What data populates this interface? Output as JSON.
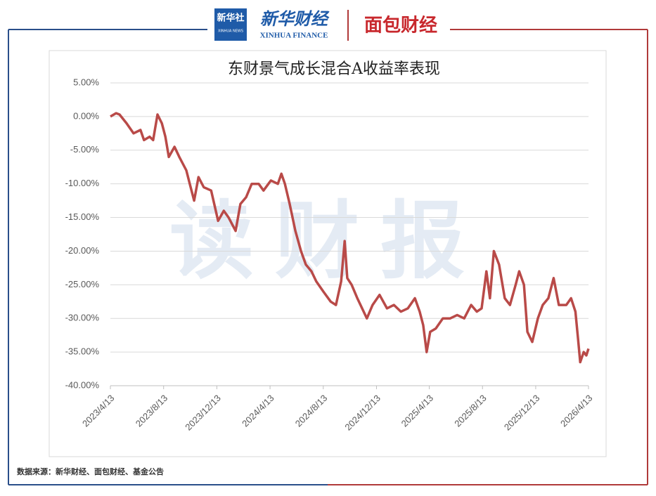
{
  "header": {
    "logo_xinhua": "新华社",
    "logo_xinhua_en": "XINHUA NEWS",
    "brand": "新华财经",
    "brand_en": "XINHUA FINANCE",
    "partner": "面包财经"
  },
  "watermark": "读财报",
  "footer": "数据来源：新华财经、面包财经、基金公告",
  "chart_data": {
    "type": "line",
    "title": "东财景气成长混合A收益率表现",
    "x": [
      "2023/4/13",
      "2023/4/26",
      "2023/5/4",
      "2023/5/20",
      "2023/6/5",
      "2023/6/21",
      "2023/6/29",
      "2023/7/12",
      "2023/7/20",
      "2023/7/30",
      "2023/8/9",
      "2023/8/17",
      "2023/8/25",
      "2023/9/7",
      "2023/9/18",
      "2023/10/4",
      "2023/10/12",
      "2023/10/22",
      "2023/11/1",
      "2023/11/13",
      "2023/11/30",
      "2023/12/16",
      "2023/12/29",
      "2024/1/9",
      "2024/1/25",
      "2024/2/5",
      "2024/2/18",
      "2024/3/2",
      "2024/3/18",
      "2024/3/29",
      "2024/4/15",
      "2024/5/1",
      "2024/5/9",
      "2024/5/17",
      "2024/5/28",
      "2024/6/10",
      "2024/6/23",
      "2024/7/4",
      "2024/7/17",
      "2024/7/28",
      "2024/8/13",
      "2024/8/30",
      "2024/9/11",
      "2024/9/23",
      "2024/10/1",
      "2024/10/7",
      "2024/10/17",
      "2024/10/30",
      "2024/11/10",
      "2024/11/21",
      "2024/12/4",
      "2024/12/20",
      "2025/1/6",
      "2025/1/22",
      "2025/2/7",
      "2025/2/23",
      "2025/3/11",
      "2025/3/22",
      "2025/3/30",
      "2025/4/7",
      "2025/4/15",
      "2025/4/28",
      "2025/5/14",
      "2025/5/31",
      "2025/6/16",
      "2025/7/2",
      "2025/7/18",
      "2025/7/31",
      "2025/8/11",
      "2025/8/22",
      "2025/8/30",
      "2025/9/8",
      "2025/9/20",
      "2025/10/3",
      "2025/10/15",
      "2025/10/28",
      "2025/11/5",
      "2025/11/16",
      "2025/11/24",
      "2025/12/5",
      "2025/12/18",
      "2025/12/29",
      "2026/1/11",
      "2026/1/23",
      "2026/2/4",
      "2026/2/21",
      "2026/3/4",
      "2026/3/14",
      "2026/3/20",
      "2026/3/25",
      "2026/4/2",
      "2026/4/8",
      "2026/4/13"
    ],
    "series": [
      {
        "name": "东财景气成长混合A",
        "color": "#b94a48",
        "values": [
          0,
          0.5,
          0.3,
          -1,
          -2.5,
          -2,
          -3.5,
          -3,
          -3.5,
          0.3,
          -1,
          -3,
          -6,
          -4.5,
          -6,
          -8,
          -10,
          -12.5,
          -9,
          -10.5,
          -11,
          -15.5,
          -14,
          -15,
          -17,
          -13,
          -12,
          -10,
          -10,
          -11,
          -9.5,
          -10,
          -8.5,
          -10,
          -13,
          -17,
          -20,
          -22,
          -23,
          -24.5,
          -26,
          -27.5,
          -28,
          -24.5,
          -18.5,
          -24,
          -25,
          -27,
          -28.5,
          -30,
          -28,
          -26.5,
          -28.5,
          -28,
          -29,
          -28.5,
          -27,
          -29,
          -31,
          -35,
          -32,
          -31.5,
          -30,
          -30,
          -29.5,
          -30,
          -28,
          -29,
          -28.5,
          -23,
          -27,
          -20,
          -22,
          -27,
          -28,
          -25,
          -23,
          -25,
          -32,
          -33.5,
          -30,
          -28,
          -27,
          -24,
          -28,
          -28,
          -27,
          -29,
          -33,
          -36.5,
          -35,
          -35.5,
          -34.5
        ]
      }
    ],
    "xlim": [
      "2023/4/13",
      "2026/4/13"
    ],
    "xticks": [
      "2023/4/13",
      "2023/8/13",
      "2023/12/13",
      "2024/4/13",
      "2024/8/13",
      "2024/12/13",
      "2025/4/13",
      "2025/8/13",
      "2025/12/13",
      "2026/4/13"
    ],
    "ylim": [
      -40,
      5
    ],
    "yticks": [
      {
        "value": 5,
        "label": "5.00%"
      },
      {
        "value": 0,
        "label": "0.00%"
      },
      {
        "value": -5,
        "label": "-5.00%"
      },
      {
        "value": -10,
        "label": "-10.00%"
      },
      {
        "value": -15,
        "label": "-15.00%"
      },
      {
        "value": -20,
        "label": "-20.00%"
      },
      {
        "value": -25,
        "label": "-25.00%"
      },
      {
        "value": -30,
        "label": "-30.00%"
      },
      {
        "value": -35,
        "label": "-35.00%"
      },
      {
        "value": -40,
        "label": "-40.00%"
      }
    ],
    "grid": true
  }
}
